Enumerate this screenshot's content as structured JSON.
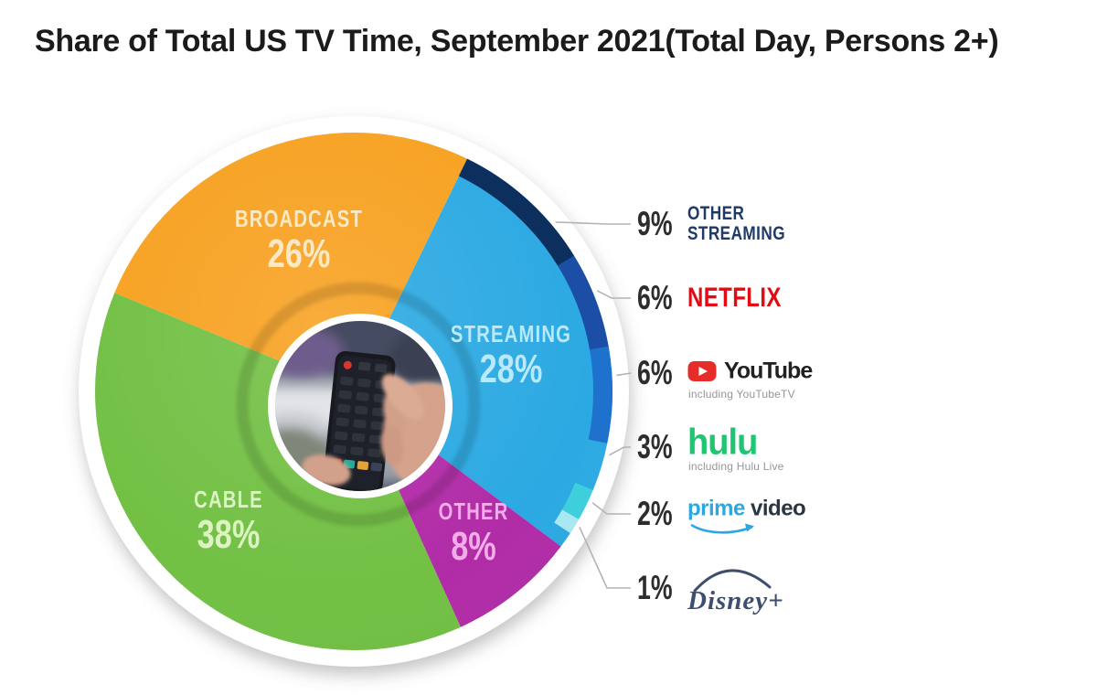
{
  "title": "Share of Total US TV Time, September 2021(Total Day, Persons 2+)",
  "chart_data": {
    "type": "pie",
    "title": "Share of Total US TV Time, September 2021(Total Day, Persons 2+)",
    "rotation_deg": 26,
    "units": "percent",
    "wedges": [
      {
        "label": "STREAMING",
        "value": 28,
        "pct_text": "28%",
        "color": "#2BA9E2",
        "label_color": "#B9E9FC"
      },
      {
        "label": "OTHER",
        "value": 8,
        "pct_text": "8%",
        "color": "#B12BA7",
        "label_color": "#F2ACE8"
      },
      {
        "label": "CABLE",
        "value": 38,
        "pct_text": "38%",
        "color": "#72C044",
        "label_color": "#DCF3C2"
      },
      {
        "label": "BROADCAST",
        "value": 26,
        "pct_text": "26%",
        "color": "#F7A120",
        "label_color": "#FBE9C6"
      }
    ],
    "streaming_breakdown": [
      {
        "name": "Other Streaming",
        "value": 9,
        "pct_text": "9%",
        "arc_color": "#0D2F5E"
      },
      {
        "name": "Netflix",
        "value": 6,
        "pct_text": "6%",
        "arc_color": "#1B4EA4"
      },
      {
        "name": "YouTube",
        "value": 6,
        "pct_text": "6%",
        "arc_color": "#1E71CD",
        "note": "including YouTubeTV"
      },
      {
        "name": "Hulu",
        "value": 3,
        "pct_text": "3%",
        "arc_color": "#2EABE2",
        "note": "including Hulu Live"
      },
      {
        "name": "Prime Video",
        "value": 2,
        "pct_text": "2%",
        "arc_color": "#3DD0DC"
      },
      {
        "name": "Disney+",
        "value": 1,
        "pct_text": "1%",
        "arc_color": "#A9E8F3"
      }
    ],
    "center_image": "photo of a hand holding a TV remote"
  },
  "legend": {
    "other_streaming": {
      "pct": "9%",
      "line1": "OTHER",
      "line2": "STREAMING"
    },
    "netflix": {
      "pct": "6%",
      "brand": "NETFLIX"
    },
    "youtube": {
      "pct": "6%",
      "brand": "YouTube",
      "note": "including YouTubeTV"
    },
    "hulu": {
      "pct": "3%",
      "brand": "hulu",
      "note": "including Hulu Live"
    },
    "prime": {
      "pct": "2%",
      "brand_word1": "prime",
      "brand_word2": "video"
    },
    "disney": {
      "pct": "1%",
      "brand": "Disney+"
    }
  },
  "colors": {
    "netflix_red": "#E50914",
    "youtube_red": "#E62D27",
    "youtube_text": "#212121",
    "hulu_green": "#1FC671",
    "prime_blue": "#2CA7DF",
    "prime_dark": "#2B3442",
    "disney_blue": "#3D4E6E",
    "other_streaming_navy": "#1E3A68",
    "leader_line_gray": "#B3B3B3"
  }
}
